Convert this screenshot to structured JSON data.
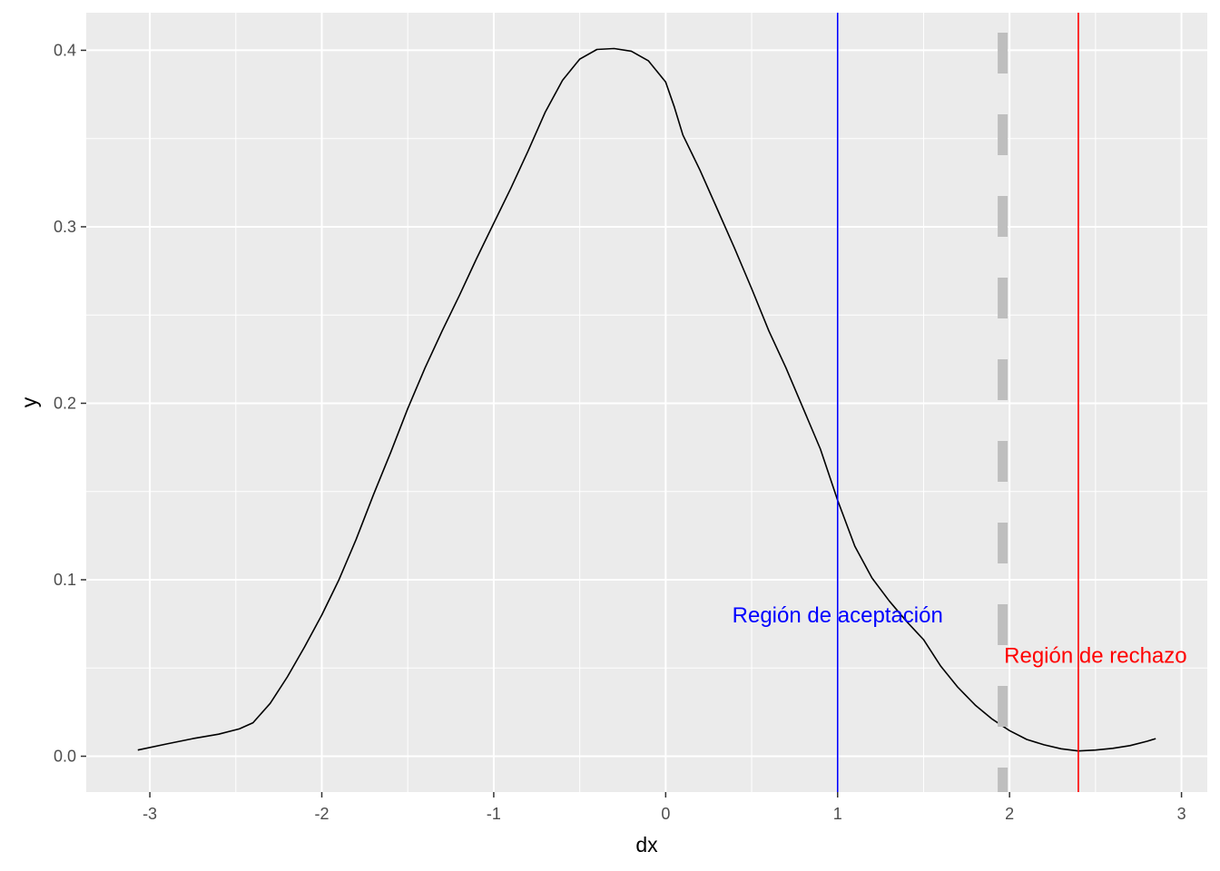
{
  "chart_data": {
    "type": "line",
    "title": "",
    "xlabel": "dx",
    "ylabel": "y",
    "xlim": [
      -3.37,
      3.15
    ],
    "ylim": [
      -0.0203,
      0.4213
    ],
    "x_ticks": [
      -3,
      -2,
      -1,
      0,
      1,
      2,
      3
    ],
    "x_tick_labels": [
      "-3",
      "-2",
      "-1",
      "0",
      "1",
      "2",
      "3"
    ],
    "y_ticks": [
      0.0,
      0.1,
      0.2,
      0.3,
      0.4
    ],
    "y_tick_labels": [
      "0.0",
      "0.1",
      "0.2",
      "0.3",
      "0.4"
    ],
    "grid": true,
    "background": "#EBEBEB",
    "grid_color": "#FFFFFF",
    "series": [
      {
        "color": "#000000",
        "x": [
          -3.07,
          -2.9,
          -2.75,
          -2.6,
          -2.48,
          -2.4,
          -2.3,
          -2.2,
          -2.1,
          -2.0,
          -1.9,
          -1.8,
          -1.7,
          -1.6,
          -1.5,
          -1.4,
          -1.3,
          -1.2,
          -1.1,
          -1.0,
          -0.9,
          -0.8,
          -0.7,
          -0.6,
          -0.5,
          -0.4,
          -0.3,
          -0.2,
          -0.1,
          0.0,
          0.05,
          0.1,
          0.2,
          0.3,
          0.4,
          0.5,
          0.6,
          0.7,
          0.8,
          0.9,
          1.0,
          1.1,
          1.2,
          1.3,
          1.4,
          1.5,
          1.6,
          1.7,
          1.8,
          1.9,
          2.0,
          2.1,
          2.2,
          2.3,
          2.4,
          2.5,
          2.6,
          2.7,
          2.8,
          2.85
        ],
        "y": [
          0.0035,
          0.007,
          0.01,
          0.0125,
          0.0155,
          0.019,
          0.03,
          0.045,
          0.062,
          0.08,
          0.1,
          0.123,
          0.148,
          0.172,
          0.197,
          0.22,
          0.241,
          0.261,
          0.282,
          0.302,
          0.322,
          0.343,
          0.365,
          0.383,
          0.395,
          0.4005,
          0.401,
          0.3995,
          0.394,
          0.382,
          0.368,
          0.352,
          0.332,
          0.31,
          0.288,
          0.265,
          0.241,
          0.22,
          0.197,
          0.174,
          0.145,
          0.119,
          0.101,
          0.088,
          0.0765,
          0.066,
          0.051,
          0.039,
          0.029,
          0.021,
          0.0145,
          0.0095,
          0.0065,
          0.0042,
          0.003,
          0.0035,
          0.0045,
          0.006,
          0.0085,
          0.01
        ]
      }
    ],
    "vlines": [
      {
        "x": 1.0,
        "color": "#0000FF",
        "linetype": "solid"
      },
      {
        "x": 1.96,
        "color": "#BEBEBE",
        "linetype": "dashed"
      },
      {
        "x": 2.4,
        "color": "#FF0000",
        "linetype": "solid"
      }
    ],
    "annotations": [
      {
        "text": "Región de aceptación",
        "x": 1.0,
        "y": 0.08,
        "color": "#0000FF"
      },
      {
        "text": "Región de rechazo",
        "x": 2.5,
        "y": 0.057,
        "color": "#FF0000"
      }
    ]
  }
}
